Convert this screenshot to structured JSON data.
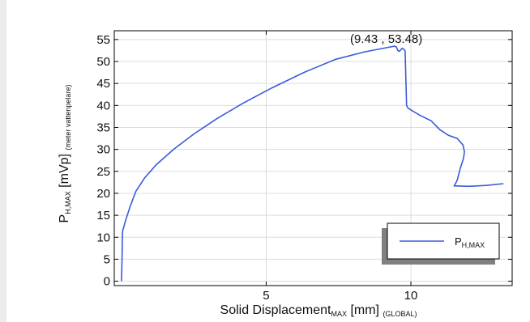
{
  "chart_data": {
    "type": "line",
    "xlabel": {
      "main": "Solid Displacement",
      "sub": "MAX",
      "unit": " [mm] ",
      "sub2": "(GLOBAL)"
    },
    "ylabel": {
      "main": "P",
      "sub": "H,MAX",
      "unit": " [mVp] ",
      "sub2": "(meter vattenpelare)"
    },
    "xlim": [
      -0.25,
      13.5
    ],
    "ylim": [
      -1,
      57
    ],
    "xticks": [
      5,
      10
    ],
    "yticks": [
      0,
      5,
      10,
      15,
      20,
      25,
      30,
      35,
      40,
      45,
      50,
      55
    ],
    "grid": true,
    "legend": {
      "position": "bottom-right",
      "sub": "H,MAX"
    },
    "annotation": {
      "text": "(9.43 , 53.48)",
      "x": 9.43,
      "y": 53.48
    },
    "series": [
      {
        "color": "#3b5bdb",
        "points": [
          [
            0.0,
            0
          ],
          [
            0.02,
            5
          ],
          [
            0.03,
            10
          ],
          [
            0.04,
            11.5
          ],
          [
            0.15,
            14
          ],
          [
            0.3,
            17
          ],
          [
            0.5,
            20.5
          ],
          [
            0.8,
            23.5
          ],
          [
            1.2,
            26.5
          ],
          [
            1.8,
            30
          ],
          [
            2.5,
            33.5
          ],
          [
            3.3,
            37
          ],
          [
            4.2,
            40.5
          ],
          [
            5.2,
            44
          ],
          [
            6.3,
            47.5
          ],
          [
            7.4,
            50.5
          ],
          [
            8.4,
            52.2
          ],
          [
            9.2,
            53.2
          ],
          [
            9.43,
            53.48
          ],
          [
            9.5,
            53.3
          ],
          [
            9.55,
            52.5
          ],
          [
            9.6,
            52.3
          ],
          [
            9.7,
            53.0
          ],
          [
            9.75,
            52.8
          ],
          [
            9.8,
            52.4
          ],
          [
            9.85,
            40.0
          ],
          [
            9.9,
            39.4
          ],
          [
            10.3,
            37.8
          ],
          [
            10.7,
            36.5
          ],
          [
            11.0,
            34.5
          ],
          [
            11.3,
            33.2
          ],
          [
            11.6,
            32.5
          ],
          [
            11.8,
            31.0
          ],
          [
            11.85,
            29.5
          ],
          [
            11.82,
            28.0
          ],
          [
            11.7,
            25.5
          ],
          [
            11.6,
            23.0
          ],
          [
            11.5,
            21.7
          ],
          [
            12.0,
            21.6
          ],
          [
            12.6,
            21.8
          ],
          [
            13.2,
            22.2
          ]
        ]
      }
    ]
  }
}
